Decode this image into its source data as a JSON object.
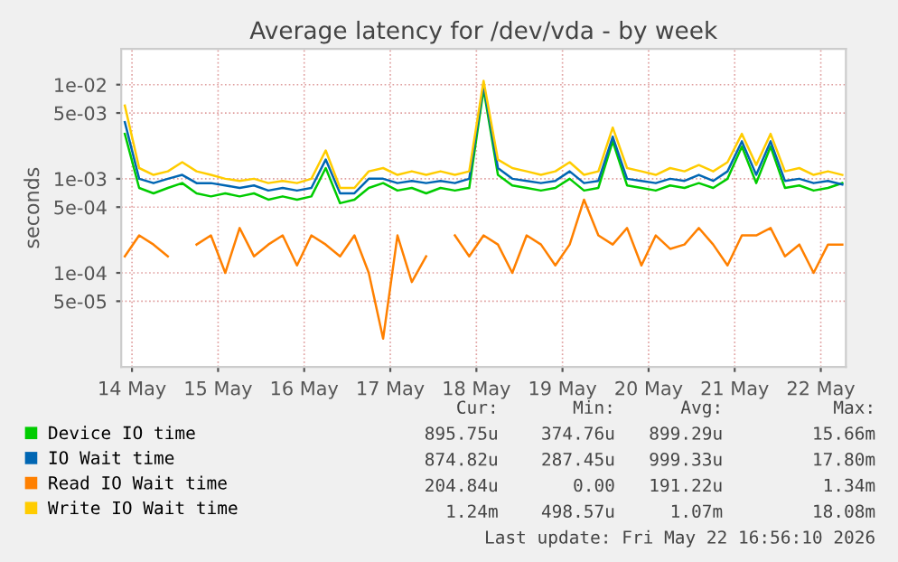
{
  "chart_data": {
    "type": "line",
    "title": "Average latency for /dev/vda - by week",
    "ylabel": "seconds",
    "log": "y",
    "grid": true,
    "legend": "bottom",
    "marker": "none",
    "line_style": "solid",
    "ylim": [
      1e-05,
      0.024
    ],
    "yticks": [
      {
        "value": 5e-05,
        "label": "5e-05"
      },
      {
        "value": 0.0001,
        "label": "1e-04"
      },
      {
        "value": 0.0005,
        "label": "5e-04"
      },
      {
        "value": 0.001,
        "label": "1e-03"
      },
      {
        "value": 0.005,
        "label": "5e-03"
      },
      {
        "value": 0.01,
        "label": "1e-02"
      }
    ],
    "xlim": [
      "2026-05-14T09:00",
      "2026-05-22T19:00"
    ],
    "xticks": [
      {
        "value": "2026-05-14T12:00",
        "label": "14 May"
      },
      {
        "value": "2026-05-15T12:00",
        "label": "15 May"
      },
      {
        "value": "2026-05-16T12:00",
        "label": "16 May"
      },
      {
        "value": "2026-05-17T12:00",
        "label": "17 May"
      },
      {
        "value": "2026-05-18T12:00",
        "label": "18 May"
      },
      {
        "value": "2026-05-19T12:00",
        "label": "19 May"
      },
      {
        "value": "2026-05-20T12:00",
        "label": "20 May"
      },
      {
        "value": "2026-05-21T12:00",
        "label": "21 May"
      },
      {
        "value": "2026-05-22T12:00",
        "label": "22 May"
      }
    ],
    "x": [
      "2026-05-14T10:00",
      "2026-05-14T14:00",
      "2026-05-14T18:00",
      "2026-05-14T22:00",
      "2026-05-15T02:00",
      "2026-05-15T06:00",
      "2026-05-15T10:00",
      "2026-05-15T14:00",
      "2026-05-15T18:00",
      "2026-05-15T22:00",
      "2026-05-16T02:00",
      "2026-05-16T06:00",
      "2026-05-16T10:00",
      "2026-05-16T14:00",
      "2026-05-16T18:00",
      "2026-05-16T22:00",
      "2026-05-17T02:00",
      "2026-05-17T06:00",
      "2026-05-17T10:00",
      "2026-05-17T14:00",
      "2026-05-17T18:00",
      "2026-05-17T22:00",
      "2026-05-18T02:00",
      "2026-05-18T06:00",
      "2026-05-18T10:00",
      "2026-05-18T14:00",
      "2026-05-18T18:00",
      "2026-05-18T22:00",
      "2026-05-19T02:00",
      "2026-05-19T06:00",
      "2026-05-19T10:00",
      "2026-05-19T14:00",
      "2026-05-19T18:00",
      "2026-05-19T22:00",
      "2026-05-20T02:00",
      "2026-05-20T06:00",
      "2026-05-20T10:00",
      "2026-05-20T14:00",
      "2026-05-20T18:00",
      "2026-05-20T22:00",
      "2026-05-21T02:00",
      "2026-05-21T06:00",
      "2026-05-21T10:00",
      "2026-05-21T14:00",
      "2026-05-21T18:00",
      "2026-05-21T22:00",
      "2026-05-22T02:00",
      "2026-05-22T06:00",
      "2026-05-22T10:00",
      "2026-05-22T14:00",
      "2026-05-22T18:00"
    ],
    "series": [
      {
        "name": "Device IO time",
        "color": "#00cc00",
        "values": [
          0.003,
          0.0008,
          0.0007,
          0.0008,
          0.0009,
          0.0007,
          0.00065,
          0.0007,
          0.00065,
          0.0007,
          0.0006,
          0.00065,
          0.0006,
          0.00065,
          0.0013,
          0.00055,
          0.0006,
          0.0008,
          0.0009,
          0.00075,
          0.0008,
          0.0007,
          0.0008,
          0.00075,
          0.0008,
          0.009,
          0.0011,
          0.00085,
          0.0008,
          0.00075,
          0.0008,
          0.001,
          0.00075,
          0.0008,
          0.0025,
          0.00085,
          0.0008,
          0.00075,
          0.00085,
          0.0008,
          0.0009,
          0.0008,
          0.001,
          0.0022,
          0.0009,
          0.0022,
          0.0008,
          0.00085,
          0.00075,
          0.0008,
          0.0009
        ]
      },
      {
        "name": "IO Wait time",
        "color": "#0066b3",
        "values": [
          0.004,
          0.001,
          0.0009,
          0.001,
          0.0011,
          0.0009,
          0.0009,
          0.00085,
          0.0008,
          0.00085,
          0.00075,
          0.0008,
          0.00075,
          0.0008,
          0.0016,
          0.0007,
          0.0007,
          0.001,
          0.001,
          0.0009,
          0.00095,
          0.0009,
          0.00095,
          0.0009,
          0.001,
          0.01,
          0.0013,
          0.001,
          0.00095,
          0.0009,
          0.00095,
          0.0012,
          0.0009,
          0.00095,
          0.0028,
          0.001,
          0.00095,
          0.0009,
          0.001,
          0.00095,
          0.0011,
          0.00095,
          0.0012,
          0.0025,
          0.0011,
          0.0025,
          0.00095,
          0.001,
          0.0009,
          0.00095,
          0.00087
        ]
      },
      {
        "name": "Read IO Wait time",
        "color": "#ff8000",
        "values": [
          0.00015,
          0.00025,
          0.0002,
          0.00015,
          null,
          0.0002,
          0.00025,
          0.0001,
          0.0003,
          0.00015,
          0.0002,
          0.00025,
          0.00012,
          0.00025,
          0.0002,
          0.00015,
          0.00025,
          0.0001,
          2e-05,
          0.00025,
          8e-05,
          0.00015,
          null,
          0.00025,
          0.00015,
          0.00025,
          0.0002,
          0.0001,
          0.00025,
          0.0002,
          0.00012,
          0.0002,
          0.0006,
          0.00025,
          0.0002,
          0.0003,
          0.00012,
          0.00025,
          0.00018,
          0.0002,
          0.0003,
          0.0002,
          0.00012,
          0.00025,
          0.00025,
          0.0003,
          0.00015,
          0.0002,
          0.0001,
          0.0002,
          0.0002
        ]
      },
      {
        "name": "Write IO Wait time",
        "color": "#ffcc00",
        "values": [
          0.006,
          0.0013,
          0.0011,
          0.0012,
          0.0015,
          0.0012,
          0.0011,
          0.001,
          0.00095,
          0.001,
          0.0009,
          0.00095,
          0.0009,
          0.001,
          0.002,
          0.0008,
          0.0008,
          0.0012,
          0.0013,
          0.0011,
          0.0012,
          0.0011,
          0.0012,
          0.0011,
          0.0012,
          0.011,
          0.0016,
          0.0013,
          0.0012,
          0.0011,
          0.0012,
          0.0015,
          0.0011,
          0.0012,
          0.0035,
          0.0013,
          0.0012,
          0.0011,
          0.0013,
          0.0012,
          0.0014,
          0.0012,
          0.0015,
          0.003,
          0.0014,
          0.003,
          0.0012,
          0.0013,
          0.0011,
          0.0012,
          0.0011
        ]
      }
    ],
    "annotations": [
      "Cur:",
      "Min:",
      "Avg:",
      "Max:",
      "895.75u",
      "374.76u",
      "899.29u",
      "15.66m",
      "874.82u",
      "287.45u",
      "999.33u",
      "17.80m",
      "204.84u",
      "0.00",
      "191.22u",
      "1.34m",
      "1.24m",
      "498.57u",
      "1.07m",
      "18.08m",
      "Last update: Fri May 22 16:56:10 2026"
    ]
  }
}
